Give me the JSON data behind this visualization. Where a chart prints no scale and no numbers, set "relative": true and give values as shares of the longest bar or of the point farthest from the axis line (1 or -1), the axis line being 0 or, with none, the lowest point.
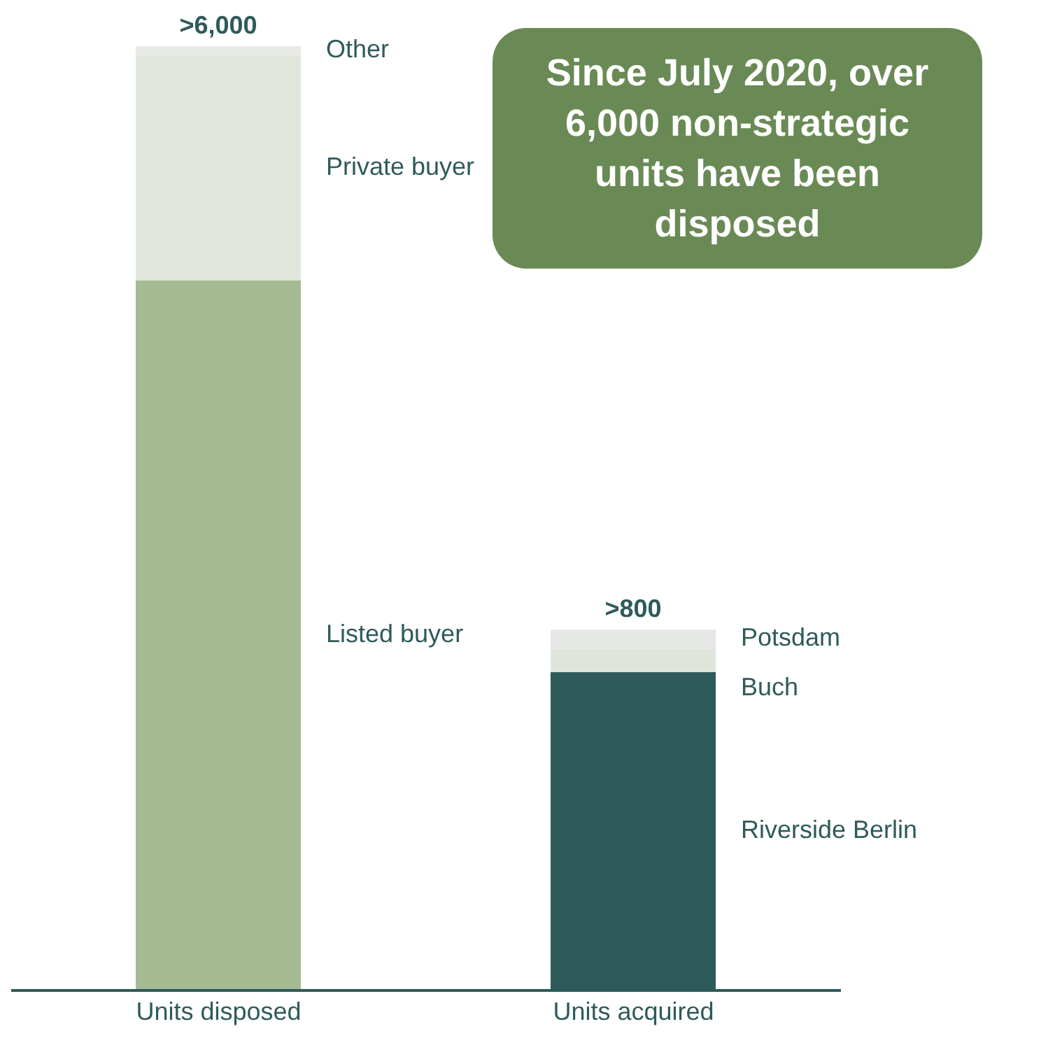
{
  "chart_data": {
    "type": "bar",
    "stacked": true,
    "relative": true,
    "categories": [
      "Units disposed",
      "Units acquired"
    ],
    "series": [
      {
        "name": "Listed buyer",
        "color": "#a5bb94",
        "values": [
          0.752,
          null
        ]
      },
      {
        "name": "Private buyer",
        "color": "#e0e6dc",
        "values": [
          0.238,
          null
        ]
      },
      {
        "name": "Other",
        "color": "#e8eae6",
        "values": [
          0.01,
          null
        ]
      },
      {
        "name": "Riverside Berlin",
        "color": "#2f5a5a",
        "values": [
          null,
          0.337
        ]
      },
      {
        "name": "Buch",
        "color": "#dfe5db",
        "values": [
          null,
          0.025
        ]
      },
      {
        "name": "Potsdam",
        "color": "#e6e8e5",
        "values": [
          null,
          0.02
        ]
      }
    ],
    "totals": [
      ">6,000",
      ">800"
    ],
    "annotations": [
      "Since July 2020, over 6,000 non-strategic units have been disposed"
    ],
    "legend": false,
    "grid": false
  }
}
